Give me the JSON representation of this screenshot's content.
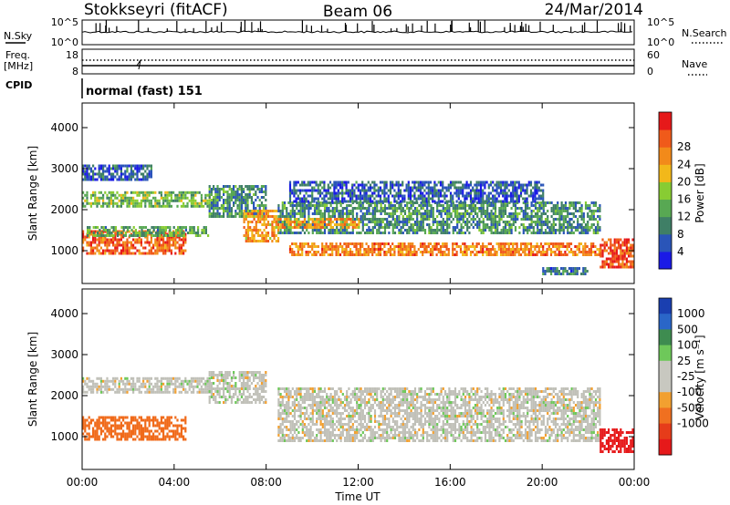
{
  "header": {
    "station": "Stokkseyri (fitACF)",
    "beam": "Beam 06",
    "date": "24/Mar/2014"
  },
  "noise_panel": {
    "left_label": "N.Sky",
    "right_label": "N.Search",
    "left_ticks": [
      "10^5",
      "10^0"
    ],
    "right_ticks": [
      "10^5",
      "10^0"
    ]
  },
  "freq_panel": {
    "left_label_top": "Freq.",
    "left_label_bottom": "[MHz]",
    "right_label": "Nave",
    "left_ticks": [
      "18",
      "8"
    ],
    "right_ticks": [
      "60",
      "0"
    ]
  },
  "cpid": {
    "label": "CPID",
    "value": "normal (fast) 151"
  },
  "colors": {
    "power_scale": [
      "#1a1ae6",
      "#2a55b8",
      "#3f7f66",
      "#58a853",
      "#88cc33",
      "#f2b81a",
      "#f28a1a",
      "#f05a1a",
      "#e6191a"
    ],
    "velocity_scale": [
      "#1a3fb0",
      "#2a66c8",
      "#3e8c50",
      "#6ec85a",
      "#c8c8c0",
      "#c8c8c0",
      "#f2a030",
      "#f07020",
      "#e63c1a",
      "#e6191a"
    ],
    "ground_scatter": "#c0c0b8"
  },
  "chart_data": [
    {
      "type": "heatmap",
      "title": "",
      "xlabel": "",
      "ylabel": "Slant Range [km]",
      "xlim": [
        0,
        24
      ],
      "ylim": [
        200,
        4600
      ],
      "x_ticks": [
        "00:00",
        "04:00",
        "08:00",
        "12:00",
        "16:00",
        "20:00",
        "00:00"
      ],
      "y_ticks": [
        "1000",
        "2000",
        "3000",
        "4000"
      ],
      "colorbar": {
        "label": "Power [dB]",
        "range": [
          0,
          32
        ],
        "ticks": [
          "4",
          "8",
          "12",
          "16",
          "20",
          "24",
          "28"
        ]
      },
      "bands": [
        {
          "t0": 0.0,
          "t1": 4.5,
          "r0": 900,
          "r1": 1500,
          "value": 26
        },
        {
          "t0": 0.2,
          "t1": 5.5,
          "r0": 1350,
          "r1": 1600,
          "value": 12
        },
        {
          "t0": 0.0,
          "t1": 5.5,
          "r0": 2100,
          "r1": 2450,
          "value": 14
        },
        {
          "t0": 0.0,
          "t1": 3.0,
          "r0": 2700,
          "r1": 3100,
          "value": 6
        },
        {
          "t0": 5.5,
          "t1": 8.0,
          "r0": 1800,
          "r1": 2600,
          "value": 10
        },
        {
          "t0": 7.0,
          "t1": 8.5,
          "r0": 1200,
          "r1": 2000,
          "value": 22
        },
        {
          "t0": 8.5,
          "t1": 22.5,
          "r0": 1400,
          "r1": 2200,
          "value": 10
        },
        {
          "t0": 8.5,
          "t1": 12.0,
          "r0": 1550,
          "r1": 1800,
          "value": 22
        },
        {
          "t0": 9.0,
          "t1": 22.5,
          "r0": 900,
          "r1": 1200,
          "value": 24
        },
        {
          "t0": 9.0,
          "t1": 20.0,
          "r0": 2200,
          "r1": 2700,
          "value": 6
        },
        {
          "t0": 22.5,
          "t1": 24.0,
          "r0": 600,
          "r1": 1300,
          "value": 28
        },
        {
          "t0": 20.0,
          "t1": 22.0,
          "r0": 400,
          "r1": 600,
          "value": 8
        }
      ]
    },
    {
      "type": "heatmap",
      "title": "",
      "xlabel": "Time UT",
      "ylabel": "Slant Range [km]",
      "xlim": [
        0,
        24
      ],
      "ylim": [
        200,
        4600
      ],
      "x_ticks": [
        "00:00",
        "04:00",
        "08:00",
        "12:00",
        "16:00",
        "20:00",
        "00:00"
      ],
      "y_ticks": [
        "1000",
        "2000",
        "3000",
        "4000"
      ],
      "colorbar": {
        "label": "Velocity [m s⁻¹]",
        "ticks": [
          "1000",
          "500",
          "100",
          "25",
          "-25",
          "-100",
          "-500",
          "-1000"
        ]
      },
      "bands": [
        {
          "t0": 0.0,
          "t1": 4.5,
          "r0": 900,
          "r1": 1500,
          "value": -400
        },
        {
          "t0": 0.0,
          "t1": 5.5,
          "r0": 2100,
          "r1": 2450,
          "value": 0
        },
        {
          "t0": 5.5,
          "t1": 8.0,
          "r0": 1800,
          "r1": 2600,
          "value": 0
        },
        {
          "t0": 8.5,
          "t1": 22.5,
          "r0": 900,
          "r1": 2200,
          "value": 0
        },
        {
          "t0": 22.5,
          "t1": 24.0,
          "r0": 600,
          "r1": 1200,
          "value": -800
        }
      ]
    }
  ]
}
